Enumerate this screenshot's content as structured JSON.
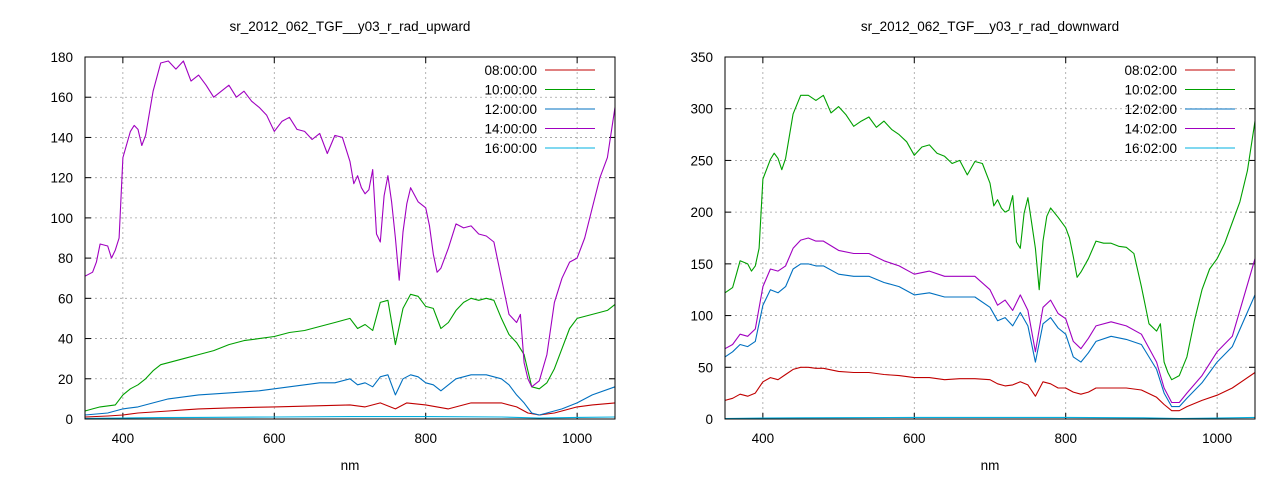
{
  "colors": {
    "c0800": "#c00000",
    "c1000": "#00a000",
    "c1200": "#0070c0",
    "c1400": "#a000c0",
    "c1600": "#00b0e0"
  },
  "chart_data": [
    {
      "type": "line",
      "title": "sr_2012_062_TGF__y03_r_rad_upward",
      "xlabel": "nm",
      "ylabel": "",
      "xlim": [
        350,
        1050
      ],
      "ylim": [
        0,
        180
      ],
      "xticks": [
        400,
        600,
        800,
        1000
      ],
      "yticks": [
        0,
        20,
        40,
        60,
        80,
        100,
        120,
        140,
        160,
        180
      ],
      "grid": true,
      "legend": "top-right",
      "series": [
        {
          "name": "08:00:00",
          "color": "#c00000",
          "x": [
            350,
            380,
            400,
            420,
            440,
            460,
            480,
            500,
            540,
            600,
            650,
            700,
            720,
            740,
            760,
            775,
            800,
            830,
            860,
            900,
            920,
            935,
            950,
            970,
            1000,
            1020,
            1050
          ],
          "y": [
            1,
            1.5,
            2,
            3,
            3.5,
            4,
            4.5,
            5,
            5.5,
            6,
            6.5,
            7,
            6,
            8,
            5,
            8,
            7,
            5,
            8,
            8,
            6,
            3,
            2,
            3,
            6,
            7,
            8
          ]
        },
        {
          "name": "10:00:00",
          "color": "#00a000",
          "x": [
            350,
            360,
            370,
            380,
            390,
            400,
            410,
            420,
            430,
            440,
            450,
            460,
            480,
            500,
            520,
            540,
            560,
            580,
            600,
            620,
            640,
            660,
            680,
            700,
            710,
            720,
            730,
            740,
            750,
            760,
            770,
            780,
            790,
            800,
            810,
            820,
            830,
            840,
            850,
            860,
            870,
            880,
            890,
            900,
            910,
            920,
            930,
            940,
            950,
            960,
            970,
            980,
            990,
            1000,
            1010,
            1020,
            1030,
            1040,
            1050
          ],
          "y": [
            4,
            5,
            6,
            6.5,
            7,
            12,
            15,
            17,
            20,
            24,
            27,
            28,
            30,
            32,
            34,
            37,
            39,
            40,
            41,
            43,
            44,
            46,
            48,
            50,
            45,
            47,
            44,
            58,
            59,
            37,
            55,
            62,
            61,
            56,
            55,
            45,
            48,
            54,
            58,
            60,
            59,
            60,
            59,
            50,
            42,
            38,
            32,
            16,
            15,
            18,
            25,
            35,
            45,
            50,
            51,
            52,
            53,
            54,
            57
          ]
        },
        {
          "name": "12:00:00",
          "color": "#0070c0",
          "x": [
            350,
            380,
            400,
            420,
            440,
            460,
            480,
            500,
            540,
            580,
            600,
            620,
            640,
            660,
            680,
            700,
            710,
            720,
            730,
            740,
            750,
            760,
            770,
            780,
            790,
            800,
            810,
            820,
            840,
            860,
            880,
            900,
            910,
            920,
            930,
            940,
            950,
            960,
            980,
            1000,
            1020,
            1050
          ],
          "y": [
            2,
            3,
            5,
            6,
            8,
            10,
            11,
            12,
            13,
            14,
            15,
            16,
            17,
            18,
            18,
            20,
            17,
            18,
            16,
            21,
            22,
            12,
            20,
            22,
            21,
            18,
            17,
            14,
            20,
            22,
            22,
            20,
            17,
            12,
            8,
            3,
            2,
            3,
            5,
            8,
            12,
            16
          ]
        },
        {
          "name": "14:00:00",
          "color": "#a000c0",
          "x": [
            350,
            360,
            365,
            370,
            380,
            385,
            390,
            395,
            400,
            410,
            415,
            420,
            425,
            430,
            440,
            450,
            460,
            470,
            480,
            490,
            500,
            510,
            520,
            530,
            540,
            550,
            560,
            570,
            580,
            590,
            600,
            610,
            620,
            630,
            640,
            650,
            660,
            670,
            680,
            690,
            700,
            705,
            710,
            715,
            720,
            725,
            730,
            735,
            740,
            745,
            750,
            755,
            760,
            765,
            770,
            775,
            780,
            790,
            800,
            805,
            810,
            815,
            820,
            830,
            840,
            850,
            860,
            870,
            880,
            890,
            900,
            910,
            920,
            925,
            930,
            935,
            940,
            950,
            960,
            970,
            980,
            990,
            1000,
            1010,
            1020,
            1030,
            1040,
            1050
          ],
          "y": [
            71,
            73,
            78,
            87,
            86,
            80,
            84,
            90,
            130,
            143,
            146,
            144,
            136,
            141,
            163,
            177,
            178,
            174,
            178,
            168,
            171,
            166,
            160,
            163,
            166,
            160,
            163,
            158,
            155,
            151,
            143,
            148,
            150,
            144,
            143,
            139,
            142,
            132,
            141,
            140,
            128,
            117,
            121,
            115,
            112,
            114,
            124,
            92,
            88,
            111,
            121,
            108,
            90,
            69,
            93,
            107,
            115,
            108,
            105,
            96,
            82,
            73,
            75,
            85,
            97,
            95,
            96,
            92,
            91,
            88,
            70,
            52,
            48,
            52,
            28,
            20,
            16,
            19,
            32,
            58,
            70,
            78,
            80,
            90,
            105,
            120,
            130,
            155
          ]
        },
        {
          "name": "16:00:00",
          "color": "#00b0e0",
          "x": [
            350,
            400,
            450,
            500,
            600,
            700,
            800,
            900,
            950,
            1000,
            1050
          ],
          "y": [
            0.3,
            0.5,
            0.7,
            0.8,
            1,
            1.2,
            1.2,
            1,
            0.5,
            0.8,
            1
          ]
        }
      ]
    },
    {
      "type": "line",
      "title": "sr_2012_062_TGF__y03_r_rad_downward",
      "xlabel": "nm",
      "ylabel": "",
      "xlim": [
        350,
        1050
      ],
      "ylim": [
        0,
        350
      ],
      "xticks": [
        400,
        600,
        800,
        1000
      ],
      "yticks": [
        0,
        50,
        100,
        150,
        200,
        250,
        300,
        350
      ],
      "grid": true,
      "legend": "top-right",
      "series": [
        {
          "name": "08:02:00",
          "color": "#c00000",
          "x": [
            350,
            360,
            370,
            380,
            390,
            400,
            410,
            420,
            430,
            440,
            450,
            460,
            470,
            480,
            500,
            520,
            540,
            560,
            580,
            600,
            620,
            640,
            660,
            680,
            700,
            710,
            720,
            730,
            740,
            750,
            760,
            770,
            780,
            790,
            800,
            810,
            820,
            830,
            840,
            860,
            880,
            900,
            920,
            930,
            940,
            950,
            960,
            980,
            1000,
            1020,
            1050
          ],
          "y": [
            18,
            20,
            24,
            22,
            25,
            36,
            40,
            38,
            43,
            48,
            50,
            50,
            49,
            49,
            46,
            45,
            45,
            43,
            42,
            40,
            40,
            38,
            39,
            39,
            38,
            34,
            32,
            33,
            36,
            33,
            22,
            36,
            34,
            30,
            30,
            26,
            24,
            26,
            30,
            30,
            30,
            28,
            21,
            14,
            8,
            8,
            12,
            18,
            23,
            30,
            45
          ]
        },
        {
          "name": "10:02:00",
          "color": "#00a000",
          "x": [
            350,
            360,
            365,
            370,
            380,
            385,
            390,
            395,
            400,
            410,
            415,
            420,
            425,
            430,
            440,
            450,
            460,
            470,
            480,
            490,
            500,
            510,
            520,
            530,
            540,
            550,
            560,
            570,
            580,
            590,
            600,
            610,
            620,
            630,
            640,
            650,
            660,
            670,
            680,
            690,
            700,
            705,
            710,
            715,
            720,
            725,
            730,
            735,
            740,
            745,
            750,
            755,
            760,
            765,
            770,
            775,
            780,
            790,
            800,
            805,
            810,
            815,
            820,
            830,
            840,
            850,
            860,
            870,
            880,
            890,
            900,
            910,
            920,
            925,
            930,
            935,
            940,
            950,
            960,
            970,
            980,
            990,
            1000,
            1010,
            1020,
            1030,
            1040,
            1050
          ],
          "y": [
            122,
            127,
            140,
            153,
            150,
            143,
            148,
            165,
            232,
            251,
            257,
            252,
            241,
            252,
            295,
            313,
            313,
            308,
            313,
            296,
            302,
            294,
            283,
            288,
            292,
            282,
            288,
            280,
            275,
            268,
            255,
            263,
            265,
            257,
            254,
            247,
            250,
            236,
            249,
            247,
            228,
            206,
            212,
            204,
            200,
            202,
            216,
            171,
            165,
            199,
            214,
            190,
            165,
            125,
            172,
            196,
            204,
            195,
            185,
            175,
            157,
            137,
            142,
            155,
            172,
            170,
            170,
            167,
            166,
            160,
            128,
            92,
            85,
            92,
            55,
            45,
            38,
            42,
            60,
            95,
            125,
            145,
            155,
            170,
            190,
            210,
            240,
            288
          ]
        },
        {
          "name": "12:02:00",
          "color": "#0070c0",
          "x": [
            350,
            360,
            370,
            380,
            390,
            400,
            410,
            420,
            430,
            440,
            450,
            460,
            470,
            480,
            500,
            520,
            540,
            560,
            580,
            600,
            620,
            640,
            660,
            680,
            700,
            710,
            720,
            730,
            740,
            750,
            760,
            770,
            780,
            790,
            800,
            810,
            820,
            830,
            840,
            860,
            880,
            900,
            920,
            930,
            940,
            950,
            960,
            980,
            1000,
            1020,
            1050
          ],
          "y": [
            60,
            65,
            72,
            70,
            75,
            110,
            125,
            122,
            128,
            145,
            150,
            150,
            148,
            148,
            140,
            138,
            138,
            132,
            128,
            120,
            122,
            118,
            118,
            118,
            108,
            95,
            98,
            90,
            103,
            90,
            55,
            92,
            98,
            88,
            82,
            60,
            55,
            64,
            75,
            80,
            77,
            72,
            48,
            25,
            12,
            12,
            20,
            35,
            55,
            70,
            120
          ]
        },
        {
          "name": "14:02:00",
          "color": "#a000c0",
          "x": [
            350,
            360,
            370,
            380,
            390,
            400,
            410,
            420,
            430,
            440,
            450,
            460,
            470,
            480,
            500,
            520,
            540,
            560,
            580,
            600,
            620,
            640,
            660,
            680,
            700,
            710,
            720,
            730,
            740,
            750,
            760,
            770,
            780,
            790,
            800,
            810,
            820,
            830,
            840,
            860,
            880,
            900,
            920,
            930,
            940,
            950,
            960,
            980,
            1000,
            1020,
            1050
          ],
          "y": [
            68,
            72,
            82,
            80,
            87,
            128,
            145,
            143,
            148,
            165,
            173,
            175,
            172,
            172,
            163,
            160,
            160,
            153,
            148,
            140,
            143,
            138,
            138,
            138,
            125,
            110,
            115,
            105,
            120,
            105,
            65,
            108,
            115,
            102,
            97,
            75,
            68,
            78,
            90,
            94,
            90,
            82,
            55,
            30,
            16,
            16,
            25,
            42,
            65,
            80,
            155
          ]
        },
        {
          "name": "16:02:00",
          "color": "#00b0e0",
          "x": [
            350,
            400,
            450,
            500,
            600,
            700,
            800,
            900,
            950,
            1000,
            1050
          ],
          "y": [
            0.5,
            1,
            1.2,
            1.3,
            1.5,
            1.5,
            1.5,
            1.2,
            0.5,
            1,
            1.5
          ]
        }
      ]
    }
  ]
}
